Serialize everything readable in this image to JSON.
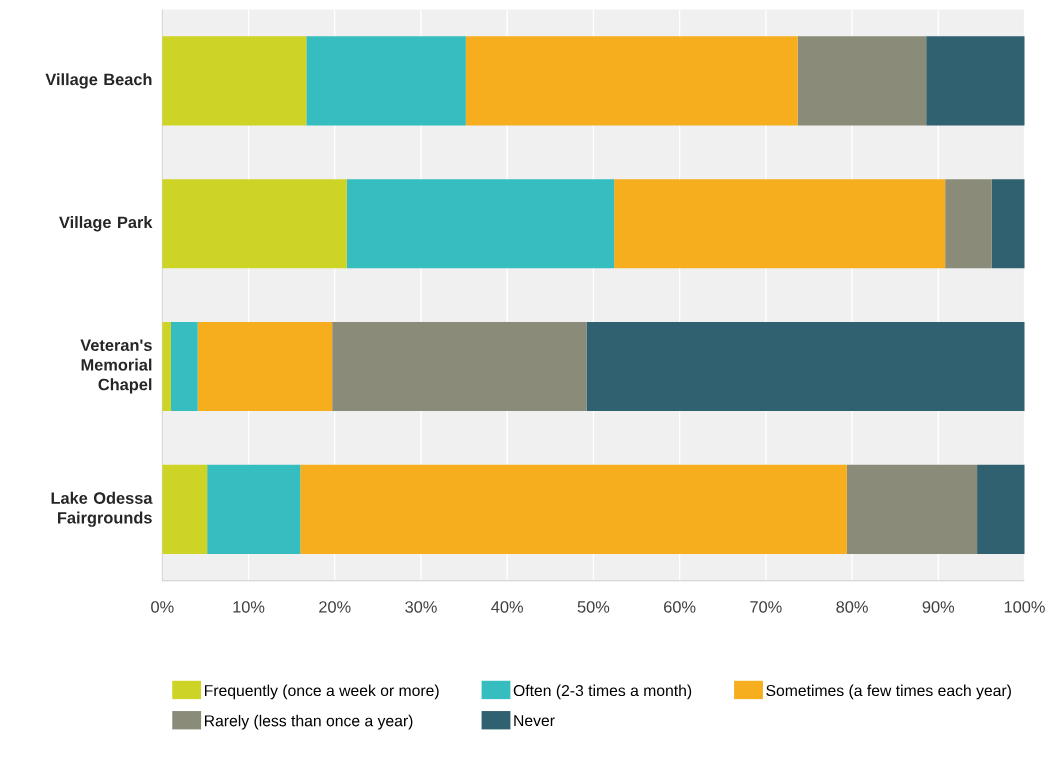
{
  "chart_data": {
    "type": "bar",
    "orientation": "horizontal",
    "stacked": true,
    "categories": [
      "Village Beach",
      "Village Park",
      "Veteran's Memorial Chapel",
      "Lake Odessa Fairgrounds"
    ],
    "series": [
      {
        "name": "Frequently (once a week or more)",
        "color": "#cdd426",
        "values": [
          16.7,
          21.4,
          1.0,
          5.2
        ]
      },
      {
        "name": "Often (2-3 times a month)",
        "color": "#35bdbf",
        "values": [
          18.5,
          31.0,
          3.1,
          10.8
        ]
      },
      {
        "name": "Sometimes (a few times each year)",
        "color": "#f6ae1f",
        "values": [
          38.5,
          38.4,
          15.6,
          63.4
        ]
      },
      {
        "name": "Rarely (less than once a year)",
        "color": "#8a8b79",
        "values": [
          14.9,
          5.4,
          29.5,
          15.1
        ]
      },
      {
        "name": "Never",
        "color": "#2f6170",
        "values": [
          11.4,
          3.8,
          50.8,
          5.5
        ]
      }
    ],
    "xlim": [
      0,
      100
    ],
    "xticks": [
      {
        "value": 0,
        "label": "0%"
      },
      {
        "value": 10,
        "label": "10%"
      },
      {
        "value": 20,
        "label": "20%"
      },
      {
        "value": 30,
        "label": "30%"
      },
      {
        "value": 40,
        "label": "40%"
      },
      {
        "value": 50,
        "label": "50%"
      },
      {
        "value": 60,
        "label": "60%"
      },
      {
        "value": 70,
        "label": "70%"
      },
      {
        "value": 80,
        "label": "80%"
      },
      {
        "value": 90,
        "label": "90%"
      },
      {
        "value": 100,
        "label": "100%"
      }
    ],
    "grid": "x",
    "legend": "bottom"
  }
}
